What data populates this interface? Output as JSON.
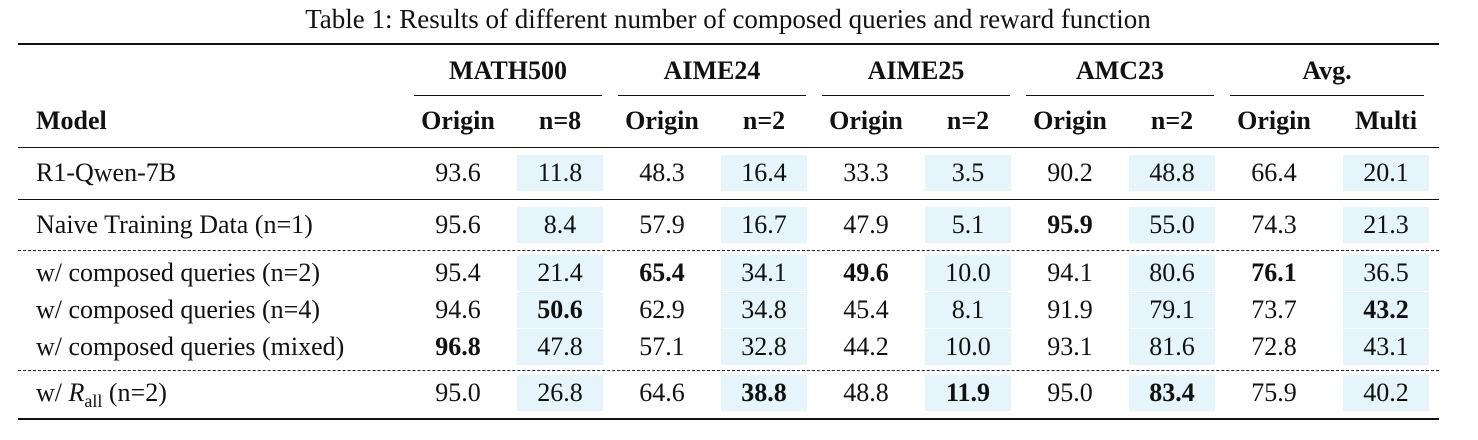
{
  "caption": "Table 1: Results of different number of composed queries and reward function",
  "groups": [
    {
      "name": "MATH500",
      "sub": [
        "Origin",
        "n=8"
      ]
    },
    {
      "name": "AIME24",
      "sub": [
        "Origin",
        "n=2"
      ]
    },
    {
      "name": "AIME25",
      "sub": [
        "Origin",
        "n=2"
      ]
    },
    {
      "name": "AMC23",
      "sub": [
        "Origin",
        "n=2"
      ]
    },
    {
      "name": "Avg.",
      "sub": [
        "Origin",
        "Multi"
      ]
    }
  ],
  "model_header": "Model",
  "rows": [
    {
      "model": "R1-Qwen-7B",
      "values": [
        "93.6",
        "11.8",
        "48.3",
        "16.4",
        "33.3",
        "3.5",
        "90.2",
        "48.8",
        "66.4",
        "20.1"
      ],
      "bold": []
    },
    {
      "model": "Naive Training Data (n=1)",
      "values": [
        "95.6",
        "8.4",
        "57.9",
        "16.7",
        "47.9",
        "5.1",
        "95.9",
        "55.0",
        "74.3",
        "21.3"
      ],
      "bold": [
        6
      ]
    },
    {
      "model": "w/ composed queries (n=2)",
      "values": [
        "95.4",
        "21.4",
        "65.4",
        "34.1",
        "49.6",
        "10.0",
        "94.1",
        "80.6",
        "76.1",
        "36.5"
      ],
      "bold": [
        2,
        4,
        8
      ]
    },
    {
      "model": "w/ composed queries (n=4)",
      "values": [
        "94.6",
        "50.6",
        "62.9",
        "34.8",
        "45.4",
        "8.1",
        "91.9",
        "79.1",
        "73.7",
        "43.2"
      ],
      "bold": [
        1,
        9
      ]
    },
    {
      "model": "w/ composed queries (mixed)",
      "values": [
        "96.8",
        "47.8",
        "57.1",
        "32.8",
        "44.2",
        "10.0",
        "93.1",
        "81.6",
        "72.8",
        "43.1"
      ],
      "bold": [
        0
      ]
    },
    {
      "model_prefix": "w/ ",
      "model_italic": "R",
      "model_sub": "all",
      "model_suffix": " (n=2)",
      "values": [
        "95.0",
        "26.8",
        "64.6",
        "38.8",
        "48.8",
        "11.9",
        "95.0",
        "83.4",
        "75.9",
        "40.2"
      ],
      "bold": [
        3,
        5,
        7
      ]
    }
  ],
  "colors": {
    "shade": "#e6f5fc",
    "rule": "#111111"
  }
}
